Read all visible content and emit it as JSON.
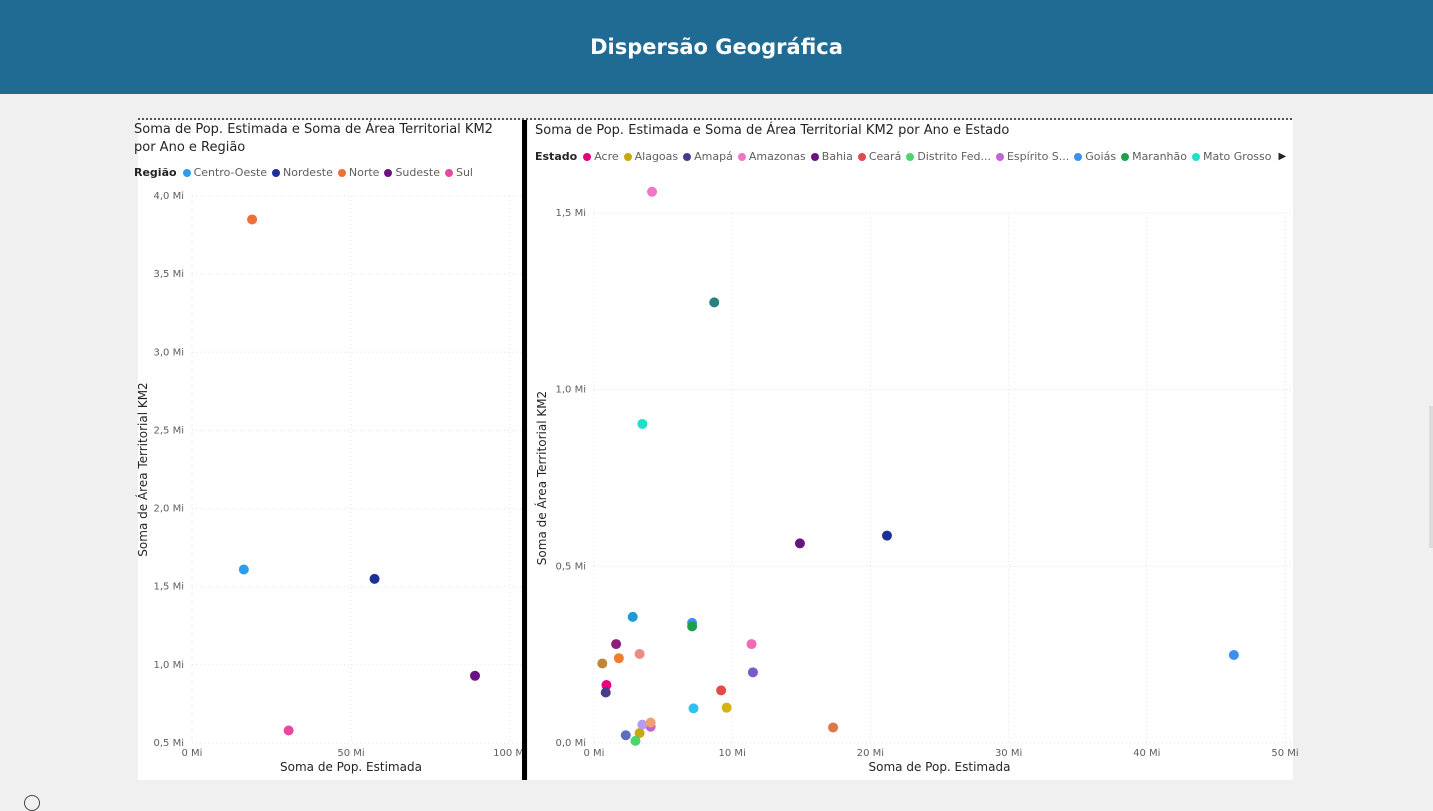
{
  "header": {
    "title": "Dispersão Geográfica"
  },
  "chart_data": [
    {
      "type": "scatter",
      "title": "Soma de Pop. Estimada e Soma de Área Territorial KM2 por Ano e Região",
      "title_lines": [
        "Soma de Pop. Estimada e Soma de Área Territorial KM2",
        "por Ano e Região"
      ],
      "xlabel": "Soma de Pop. Estimada",
      "ylabel": "Soma de Área Territorial KM2",
      "xlim": [
        0,
        100
      ],
      "ylim": [
        0.5,
        4.0
      ],
      "x_ticks": [
        0,
        50,
        100
      ],
      "x_tick_labels": [
        "0 Mi",
        "50 Mi",
        "100 Mi"
      ],
      "y_ticks": [
        0.5,
        1.0,
        1.5,
        2.0,
        2.5,
        3.0,
        3.5,
        4.0
      ],
      "y_tick_labels": [
        "0,5 Mi",
        "1,0 Mi",
        "1,5 Mi",
        "2,0 Mi",
        "2,5 Mi",
        "3,0 Mi",
        "3,5 Mi",
        "4,0 Mi"
      ],
      "grid": true,
      "legend_title": "Região",
      "legend_position": "top-left",
      "series": [
        {
          "name": "Centro-Oeste",
          "color": "#2d9cf0",
          "points": [
            [
              16.3,
              1.61
            ]
          ]
        },
        {
          "name": "Nordeste",
          "color": "#1f2f99",
          "points": [
            [
              57.4,
              1.55
            ]
          ]
        },
        {
          "name": "Norte",
          "color": "#ef6f3c",
          "points": [
            [
              18.9,
              3.85
            ]
          ]
        },
        {
          "name": "Sudeste",
          "color": "#6b1280",
          "points": [
            [
              89.0,
              0.93
            ]
          ]
        },
        {
          "name": "Sul",
          "color": "#e8489e",
          "points": [
            [
              30.4,
              0.58
            ]
          ]
        }
      ]
    },
    {
      "type": "scatter",
      "title": "Soma de Pop. Estimada e Soma de Área Territorial KM2 por Ano e Estado",
      "xlabel": "Soma de Pop. Estimada",
      "ylabel": "Soma de Área Territorial KM2",
      "xlim": [
        0,
        50
      ],
      "ylim": [
        0,
        1.5
      ],
      "x_ticks": [
        0,
        10,
        20,
        30,
        40,
        50
      ],
      "x_tick_labels": [
        "0 Mi",
        "10 Mi",
        "20 Mi",
        "30 Mi",
        "40 Mi",
        "50 Mi"
      ],
      "y_ticks": [
        0,
        0.5,
        1.0,
        1.5
      ],
      "y_tick_labels": [
        "0,0 Mi",
        "0,5 Mi",
        "1,0 Mi",
        "1,5 Mi"
      ],
      "grid": true,
      "legend_title": "Estado",
      "legend_position": "top-left",
      "series": [
        {
          "name": "Acre",
          "color": "#e6007e",
          "points": [
            [
              0.9,
              0.164
            ]
          ]
        },
        {
          "name": "Alagoas",
          "color": "#c9a80a",
          "points": [
            [
              3.3,
              0.028
            ]
          ]
        },
        {
          "name": "Amapá",
          "color": "#4a3a8a",
          "points": [
            [
              0.85,
              0.143
            ]
          ]
        },
        {
          "name": "Amazonas",
          "color": "#f077c6",
          "points": [
            [
              4.2,
              1.56
            ]
          ]
        },
        {
          "name": "Bahia",
          "color": "#6b1280",
          "points": [
            [
              14.9,
              0.565
            ]
          ]
        },
        {
          "name": "Ceará",
          "color": "#e04b4b",
          "points": [
            [
              9.2,
              0.149
            ]
          ]
        },
        {
          "name": "Distrito Fed...",
          "color": "#4cd66a",
          "points": [
            [
              3.0,
              0.006
            ]
          ]
        },
        {
          "name": "Espírito S...",
          "color": "#c165d6",
          "points": [
            [
              4.1,
              0.046
            ]
          ]
        },
        {
          "name": "Goiás",
          "color": "#3f8fef",
          "points": [
            [
              7.1,
              0.34
            ]
          ]
        },
        {
          "name": "Maranhão",
          "color": "#1fa048",
          "points": [
            [
              7.1,
              0.33
            ]
          ]
        },
        {
          "name": "Mato Grosso",
          "color": "#1ee0c8",
          "points": [
            [
              3.5,
              0.903
            ]
          ]
        },
        {
          "name": "",
          "color": "#c2853a",
          "points": [
            [
              0.6,
              0.225
            ]
          ]
        },
        {
          "name": "",
          "color": "#ef7d2f",
          "points": [
            [
              1.8,
              0.24
            ]
          ]
        },
        {
          "name": "",
          "color": "#1d9bd6",
          "points": [
            [
              2.8,
              0.357
            ]
          ]
        },
        {
          "name": "",
          "color": "#8a1e7a",
          "points": [
            [
              1.6,
              0.28
            ]
          ]
        },
        {
          "name": "",
          "color": "#f08a8a",
          "points": [
            [
              3.3,
              0.252
            ]
          ]
        },
        {
          "name": "",
          "color": "#2a8080",
          "points": [
            [
              8.7,
              1.247
            ]
          ]
        },
        {
          "name": "",
          "color": "#1f2f99",
          "points": [
            [
              21.2,
              0.587
            ]
          ]
        },
        {
          "name": "",
          "color": "#f06bb5",
          "points": [
            [
              11.4,
              0.28
            ]
          ]
        },
        {
          "name": "",
          "color": "#7a5bc8",
          "points": [
            [
              11.5,
              0.2
            ]
          ]
        },
        {
          "name": "",
          "color": "#2ec0f0",
          "points": [
            [
              7.2,
              0.098
            ]
          ]
        },
        {
          "name": "",
          "color": "#d6b30a",
          "points": [
            [
              9.6,
              0.1
            ]
          ]
        },
        {
          "name": "",
          "color": "#e07545",
          "points": [
            [
              17.3,
              0.044
            ]
          ]
        },
        {
          "name": "",
          "color": "#3d8fef",
          "points": [
            [
              46.3,
              0.249
            ]
          ]
        },
        {
          "name": "",
          "color": "#5a6fbf",
          "points": [
            [
              2.3,
              0.022
            ]
          ]
        },
        {
          "name": "",
          "color": "#b79bf0",
          "points": [
            [
              3.5,
              0.052
            ]
          ]
        },
        {
          "name": "",
          "color": "#f0a070",
          "points": [
            [
              4.1,
              0.058
            ]
          ]
        }
      ]
    }
  ]
}
